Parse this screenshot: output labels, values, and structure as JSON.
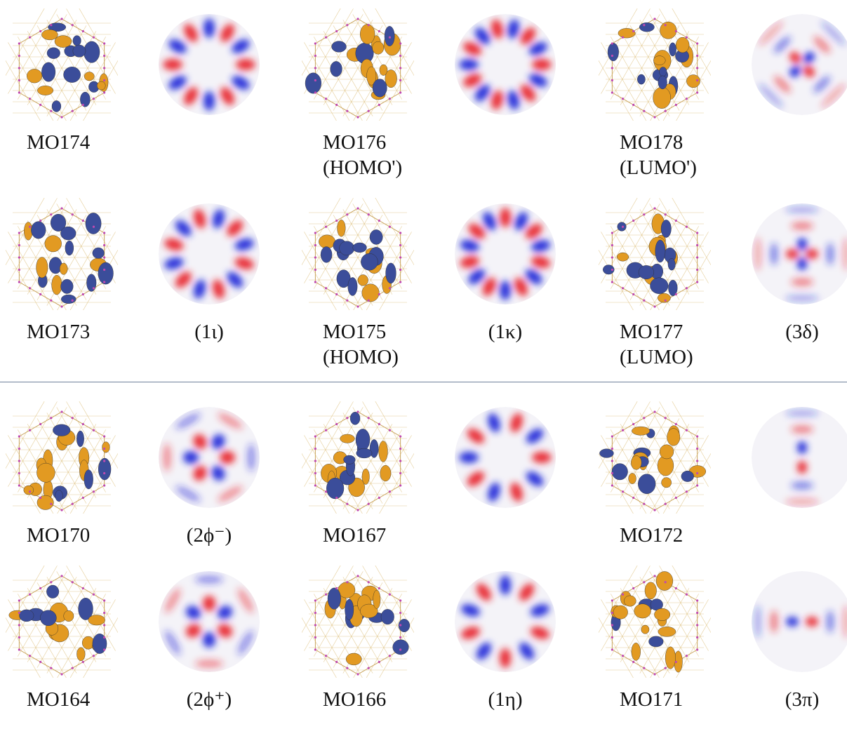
{
  "colors": {
    "positive": "#e8232a",
    "negative": "#1f28d8",
    "lobe_orange": "#e29a22",
    "lobe_blue": "#3b4d9a",
    "divider": "#6d7f99"
  },
  "rows": [
    {
      "cells": [
        {
          "kind": "mo",
          "label": "MO174",
          "sub": ""
        },
        {
          "kind": "mode",
          "label": "",
          "pattern": {
            "type": "angular",
            "m": 6,
            "phase": 0
          }
        },
        {
          "kind": "mo",
          "label": "MO176",
          "sub": "(HOMO')"
        },
        {
          "kind": "mode",
          "label": "",
          "pattern": {
            "type": "angular",
            "m": 7,
            "phase": 0
          }
        },
        {
          "kind": "mo",
          "label": "MO178",
          "sub": "(LUMO')"
        },
        {
          "kind": "mode",
          "label": "",
          "pattern": {
            "type": "rings",
            "m": 2,
            "phase": 45
          }
        }
      ]
    },
    {
      "cells": [
        {
          "kind": "mo",
          "label": "MO173",
          "sub": ""
        },
        {
          "kind": "mode",
          "label": "(1ι)",
          "pattern": {
            "type": "angular",
            "m": 6,
            "phase": 15
          }
        },
        {
          "kind": "mo",
          "label": "MO175",
          "sub": "(HOMO)"
        },
        {
          "kind": "mode",
          "label": "(1κ)",
          "pattern": {
            "type": "angular",
            "m": 7,
            "phase": 13
          }
        },
        {
          "kind": "mo",
          "label": "MO177",
          "sub": "(LUMO)"
        },
        {
          "kind": "mode",
          "label": "(3δ)",
          "pattern": {
            "type": "rings",
            "m": 2,
            "phase": 0
          }
        }
      ]
    },
    {
      "cells": [
        {
          "kind": "mo",
          "label": "MO170",
          "sub": ""
        },
        {
          "kind": "mode",
          "label": "(2ϕ⁻)",
          "pattern": {
            "type": "rings3",
            "m": 3,
            "phase": 0
          }
        },
        {
          "kind": "mo",
          "label": "MO167",
          "sub": ""
        },
        {
          "kind": "mode",
          "label": "",
          "pattern": {
            "type": "angular",
            "m": 5,
            "phase": 0
          }
        },
        {
          "kind": "mo",
          "label": "MO172",
          "sub": ""
        },
        {
          "kind": "mode",
          "label": "",
          "pattern": {
            "type": "rings",
            "m": 1,
            "phase": 90
          }
        }
      ]
    },
    {
      "cells": [
        {
          "kind": "mo",
          "label": "MO164",
          "sub": ""
        },
        {
          "kind": "mode",
          "label": "(2ϕ⁺)",
          "pattern": {
            "type": "rings3",
            "m": 3,
            "phase": 30
          }
        },
        {
          "kind": "mo",
          "label": "MO166",
          "sub": ""
        },
        {
          "kind": "mode",
          "label": "(1η)",
          "pattern": {
            "type": "angular",
            "m": 5,
            "phase": 18
          }
        },
        {
          "kind": "mo",
          "label": "MO171",
          "sub": ""
        },
        {
          "kind": "mode",
          "label": "(3π)",
          "pattern": {
            "type": "rings",
            "m": 1,
            "phase": 0
          }
        }
      ]
    }
  ]
}
